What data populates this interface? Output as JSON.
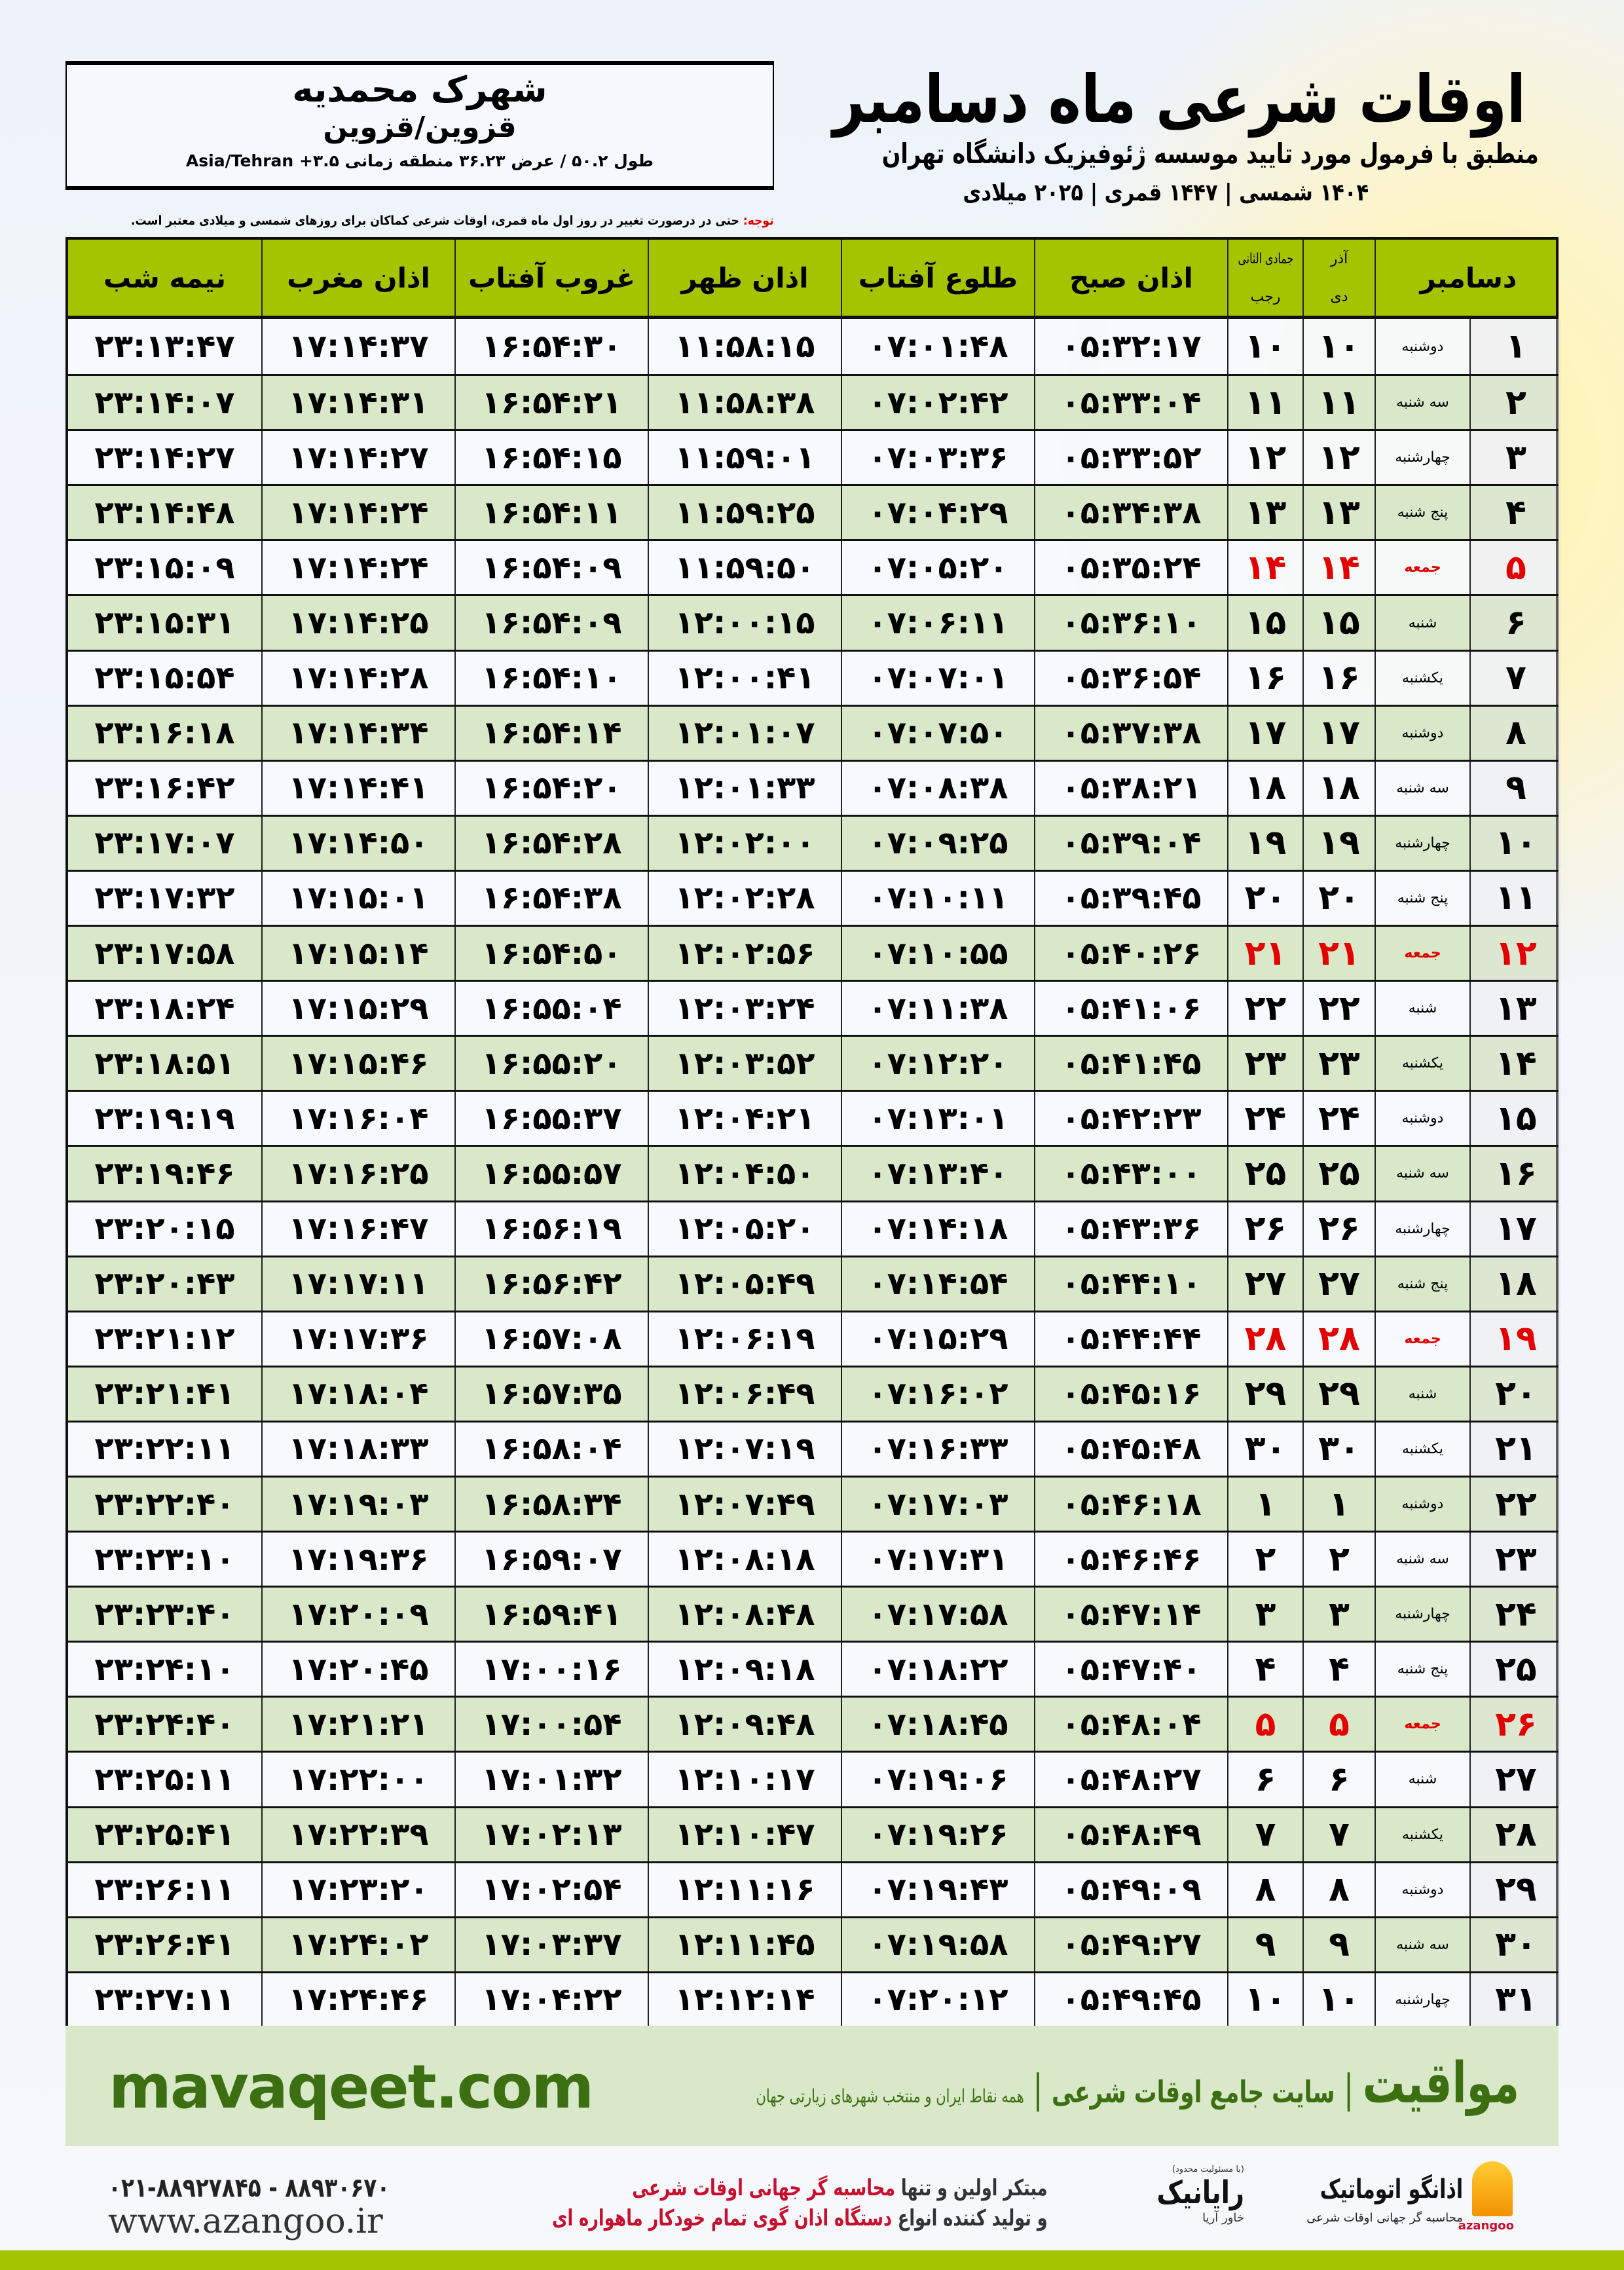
{
  "location": {
    "city": "شهرک محمدیه",
    "province": "قزوین/قزوین",
    "coords": "طول ۵۰.۲ / عرض ۳۶.۲۳ منطقه زمانی Asia/Tehran +۳.۵"
  },
  "title": {
    "main": "اوقات شرعی ماه دسامبر",
    "subtitle": "منطبق با فرمول مورد تایید موسسه ژئوفیزیک دانشگاه تهران",
    "years": "۱۴۰۴ شمسی | ۱۴۴۷ قمری | ۲۰۲۵ میلادی"
  },
  "note": {
    "label": "توجه:",
    "text": " حتی در درصورت تغییر در روز اول ماه قمری، اوقات شرعی کماکان برای روزهای شمسی و میلادی معتبر است."
  },
  "colors": {
    "header": "#a4c400",
    "even_row": "#d9e8c8",
    "friday": "#e30000",
    "brand_green": "#3c6e12"
  },
  "table": {
    "headers": {
      "month": "دسامبر",
      "shamsi_top": "آذر",
      "shamsi_bottom": "دی",
      "qamari_top": "جمادی الثانی",
      "qamari_bottom": "رجب",
      "fajr": "اذان صبح",
      "sunrise": "طلوع آفتاب",
      "dhuhr": "اذان ظهر",
      "sunset": "غروب آفتاب",
      "maghrib": "اذان مغرب",
      "midnight": "نیمه شب"
    },
    "rows": [
      {
        "day": "۱",
        "weekday": "دوشنبه",
        "shamsi": "۱۰",
        "qamari": "۱۰",
        "fajr": "۰۵:۳۲:۱۷",
        "sunrise": "۰۷:۰۱:۴۸",
        "dhuhr": "۱۱:۵۸:۱۵",
        "sunset": "۱۶:۵۴:۳۰",
        "maghrib": "۱۷:۱۴:۳۷",
        "midnight": "۲۳:۱۳:۴۷",
        "holiday": false
      },
      {
        "day": "۲",
        "weekday": "سه شنبه",
        "shamsi": "۱۱",
        "qamari": "۱۱",
        "fajr": "۰۵:۳۳:۰۴",
        "sunrise": "۰۷:۰۲:۴۲",
        "dhuhr": "۱۱:۵۸:۳۸",
        "sunset": "۱۶:۵۴:۲۱",
        "maghrib": "۱۷:۱۴:۳۱",
        "midnight": "۲۳:۱۴:۰۷",
        "holiday": false
      },
      {
        "day": "۳",
        "weekday": "چهارشنبه",
        "shamsi": "۱۲",
        "qamari": "۱۲",
        "fajr": "۰۵:۳۳:۵۲",
        "sunrise": "۰۷:۰۳:۳۶",
        "dhuhr": "۱۱:۵۹:۰۱",
        "sunset": "۱۶:۵۴:۱۵",
        "maghrib": "۱۷:۱۴:۲۷",
        "midnight": "۲۳:۱۴:۲۷",
        "holiday": false
      },
      {
        "day": "۴",
        "weekday": "پنج شنبه",
        "shamsi": "۱۳",
        "qamari": "۱۳",
        "fajr": "۰۵:۳۴:۳۸",
        "sunrise": "۰۷:۰۴:۲۹",
        "dhuhr": "۱۱:۵۹:۲۵",
        "sunset": "۱۶:۵۴:۱۱",
        "maghrib": "۱۷:۱۴:۲۴",
        "midnight": "۲۳:۱۴:۴۸",
        "holiday": false
      },
      {
        "day": "۵",
        "weekday": "جمعه",
        "shamsi": "۱۴",
        "qamari": "۱۴",
        "fajr": "۰۵:۳۵:۲۴",
        "sunrise": "۰۷:۰۵:۲۰",
        "dhuhr": "۱۱:۵۹:۵۰",
        "sunset": "۱۶:۵۴:۰۹",
        "maghrib": "۱۷:۱۴:۲۴",
        "midnight": "۲۳:۱۵:۰۹",
        "holiday": true
      },
      {
        "day": "۶",
        "weekday": "شنبه",
        "shamsi": "۱۵",
        "qamari": "۱۵",
        "fajr": "۰۵:۳۶:۱۰",
        "sunrise": "۰۷:۰۶:۱۱",
        "dhuhr": "۱۲:۰۰:۱۵",
        "sunset": "۱۶:۵۴:۰۹",
        "maghrib": "۱۷:۱۴:۲۵",
        "midnight": "۲۳:۱۵:۳۱",
        "holiday": false
      },
      {
        "day": "۷",
        "weekday": "یکشنبه",
        "shamsi": "۱۶",
        "qamari": "۱۶",
        "fajr": "۰۵:۳۶:۵۴",
        "sunrise": "۰۷:۰۷:۰۱",
        "dhuhr": "۱۲:۰۰:۴۱",
        "sunset": "۱۶:۵۴:۱۰",
        "maghrib": "۱۷:۱۴:۲۸",
        "midnight": "۲۳:۱۵:۵۴",
        "holiday": false
      },
      {
        "day": "۸",
        "weekday": "دوشنبه",
        "shamsi": "۱۷",
        "qamari": "۱۷",
        "fajr": "۰۵:۳۷:۳۸",
        "sunrise": "۰۷:۰۷:۵۰",
        "dhuhr": "۱۲:۰۱:۰۷",
        "sunset": "۱۶:۵۴:۱۴",
        "maghrib": "۱۷:۱۴:۳۴",
        "midnight": "۲۳:۱۶:۱۸",
        "holiday": false
      },
      {
        "day": "۹",
        "weekday": "سه شنبه",
        "shamsi": "۱۸",
        "qamari": "۱۸",
        "fajr": "۰۵:۳۸:۲۱",
        "sunrise": "۰۷:۰۸:۳۸",
        "dhuhr": "۱۲:۰۱:۳۳",
        "sunset": "۱۶:۵۴:۲۰",
        "maghrib": "۱۷:۱۴:۴۱",
        "midnight": "۲۳:۱۶:۴۲",
        "holiday": false
      },
      {
        "day": "۱۰",
        "weekday": "چهارشنبه",
        "shamsi": "۱۹",
        "qamari": "۱۹",
        "fajr": "۰۵:۳۹:۰۴",
        "sunrise": "۰۷:۰۹:۲۵",
        "dhuhr": "۱۲:۰۲:۰۰",
        "sunset": "۱۶:۵۴:۲۸",
        "maghrib": "۱۷:۱۴:۵۰",
        "midnight": "۲۳:۱۷:۰۷",
        "holiday": false
      },
      {
        "day": "۱۱",
        "weekday": "پنج شنبه",
        "shamsi": "۲۰",
        "qamari": "۲۰",
        "fajr": "۰۵:۳۹:۴۵",
        "sunrise": "۰۷:۱۰:۱۱",
        "dhuhr": "۱۲:۰۲:۲۸",
        "sunset": "۱۶:۵۴:۳۸",
        "maghrib": "۱۷:۱۵:۰۱",
        "midnight": "۲۳:۱۷:۳۲",
        "holiday": false
      },
      {
        "day": "۱۲",
        "weekday": "جمعه",
        "shamsi": "۲۱",
        "qamari": "۲۱",
        "fajr": "۰۵:۴۰:۲۶",
        "sunrise": "۰۷:۱۰:۵۵",
        "dhuhr": "۱۲:۰۲:۵۶",
        "sunset": "۱۶:۵۴:۵۰",
        "maghrib": "۱۷:۱۵:۱۴",
        "midnight": "۲۳:۱۷:۵۸",
        "holiday": true
      },
      {
        "day": "۱۳",
        "weekday": "شنبه",
        "shamsi": "۲۲",
        "qamari": "۲۲",
        "fajr": "۰۵:۴۱:۰۶",
        "sunrise": "۰۷:۱۱:۳۸",
        "dhuhr": "۱۲:۰۳:۲۴",
        "sunset": "۱۶:۵۵:۰۴",
        "maghrib": "۱۷:۱۵:۲۹",
        "midnight": "۲۳:۱۸:۲۴",
        "holiday": false
      },
      {
        "day": "۱۴",
        "weekday": "یکشنبه",
        "shamsi": "۲۳",
        "qamari": "۲۳",
        "fajr": "۰۵:۴۱:۴۵",
        "sunrise": "۰۷:۱۲:۲۰",
        "dhuhr": "۱۲:۰۳:۵۲",
        "sunset": "۱۶:۵۵:۲۰",
        "maghrib": "۱۷:۱۵:۴۶",
        "midnight": "۲۳:۱۸:۵۱",
        "holiday": false
      },
      {
        "day": "۱۵",
        "weekday": "دوشنبه",
        "shamsi": "۲۴",
        "qamari": "۲۴",
        "fajr": "۰۵:۴۲:۲۳",
        "sunrise": "۰۷:۱۳:۰۱",
        "dhuhr": "۱۲:۰۴:۲۱",
        "sunset": "۱۶:۵۵:۳۷",
        "maghrib": "۱۷:۱۶:۰۴",
        "midnight": "۲۳:۱۹:۱۹",
        "holiday": false
      },
      {
        "day": "۱۶",
        "weekday": "سه شنبه",
        "shamsi": "۲۵",
        "qamari": "۲۵",
        "fajr": "۰۵:۴۳:۰۰",
        "sunrise": "۰۷:۱۳:۴۰",
        "dhuhr": "۱۲:۰۴:۵۰",
        "sunset": "۱۶:۵۵:۵۷",
        "maghrib": "۱۷:۱۶:۲۵",
        "midnight": "۲۳:۱۹:۴۶",
        "holiday": false
      },
      {
        "day": "۱۷",
        "weekday": "چهارشنبه",
        "shamsi": "۲۶",
        "qamari": "۲۶",
        "fajr": "۰۵:۴۳:۳۶",
        "sunrise": "۰۷:۱۴:۱۸",
        "dhuhr": "۱۲:۰۵:۲۰",
        "sunset": "۱۶:۵۶:۱۹",
        "maghrib": "۱۷:۱۶:۴۷",
        "midnight": "۲۳:۲۰:۱۵",
        "holiday": false
      },
      {
        "day": "۱۸",
        "weekday": "پنج شنبه",
        "shamsi": "۲۷",
        "qamari": "۲۷",
        "fajr": "۰۵:۴۴:۱۰",
        "sunrise": "۰۷:۱۴:۵۴",
        "dhuhr": "۱۲:۰۵:۴۹",
        "sunset": "۱۶:۵۶:۴۲",
        "maghrib": "۱۷:۱۷:۱۱",
        "midnight": "۲۳:۲۰:۴۳",
        "holiday": false
      },
      {
        "day": "۱۹",
        "weekday": "جمعه",
        "shamsi": "۲۸",
        "qamari": "۲۸",
        "fajr": "۰۵:۴۴:۴۴",
        "sunrise": "۰۷:۱۵:۲۹",
        "dhuhr": "۱۲:۰۶:۱۹",
        "sunset": "۱۶:۵۷:۰۸",
        "maghrib": "۱۷:۱۷:۳۶",
        "midnight": "۲۳:۲۱:۱۲",
        "holiday": true
      },
      {
        "day": "۲۰",
        "weekday": "شنبه",
        "shamsi": "۲۹",
        "qamari": "۲۹",
        "fajr": "۰۵:۴۵:۱۶",
        "sunrise": "۰۷:۱۶:۰۲",
        "dhuhr": "۱۲:۰۶:۴۹",
        "sunset": "۱۶:۵۷:۳۵",
        "maghrib": "۱۷:۱۸:۰۴",
        "midnight": "۲۳:۲۱:۴۱",
        "holiday": false
      },
      {
        "day": "۲۱",
        "weekday": "یکشنبه",
        "shamsi": "۳۰",
        "qamari": "۳۰",
        "fajr": "۰۵:۴۵:۴۸",
        "sunrise": "۰۷:۱۶:۳۳",
        "dhuhr": "۱۲:۰۷:۱۹",
        "sunset": "۱۶:۵۸:۰۴",
        "maghrib": "۱۷:۱۸:۳۳",
        "midnight": "۲۳:۲۲:۱۱",
        "holiday": false
      },
      {
        "day": "۲۲",
        "weekday": "دوشنبه",
        "shamsi": "۱",
        "qamari": "۱",
        "fajr": "۰۵:۴۶:۱۸",
        "sunrise": "۰۷:۱۷:۰۳",
        "dhuhr": "۱۲:۰۷:۴۹",
        "sunset": "۱۶:۵۸:۳۴",
        "maghrib": "۱۷:۱۹:۰۳",
        "midnight": "۲۳:۲۲:۴۰",
        "holiday": false
      },
      {
        "day": "۲۳",
        "weekday": "سه شنبه",
        "shamsi": "۲",
        "qamari": "۲",
        "fajr": "۰۵:۴۶:۴۶",
        "sunrise": "۰۷:۱۷:۳۱",
        "dhuhr": "۱۲:۰۸:۱۸",
        "sunset": "۱۶:۵۹:۰۷",
        "maghrib": "۱۷:۱۹:۳۶",
        "midnight": "۲۳:۲۳:۱۰",
        "holiday": false
      },
      {
        "day": "۲۴",
        "weekday": "چهارشنبه",
        "shamsi": "۳",
        "qamari": "۳",
        "fajr": "۰۵:۴۷:۱۴",
        "sunrise": "۰۷:۱۷:۵۸",
        "dhuhr": "۱۲:۰۸:۴۸",
        "sunset": "۱۶:۵۹:۴۱",
        "maghrib": "۱۷:۲۰:۰۹",
        "midnight": "۲۳:۲۳:۴۰",
        "holiday": false
      },
      {
        "day": "۲۵",
        "weekday": "پنج شنبه",
        "shamsi": "۴",
        "qamari": "۴",
        "fajr": "۰۵:۴۷:۴۰",
        "sunrise": "۰۷:۱۸:۲۲",
        "dhuhr": "۱۲:۰۹:۱۸",
        "sunset": "۱۷:۰۰:۱۶",
        "maghrib": "۱۷:۲۰:۴۵",
        "midnight": "۲۳:۲۴:۱۰",
        "holiday": false
      },
      {
        "day": "۲۶",
        "weekday": "جمعه",
        "shamsi": "۵",
        "qamari": "۵",
        "fajr": "۰۵:۴۸:۰۴",
        "sunrise": "۰۷:۱۸:۴۵",
        "dhuhr": "۱۲:۰۹:۴۸",
        "sunset": "۱۷:۰۰:۵۴",
        "maghrib": "۱۷:۲۱:۲۱",
        "midnight": "۲۳:۲۴:۴۰",
        "holiday": true
      },
      {
        "day": "۲۷",
        "weekday": "شنبه",
        "shamsi": "۶",
        "qamari": "۶",
        "fajr": "۰۵:۴۸:۲۷",
        "sunrise": "۰۷:۱۹:۰۶",
        "dhuhr": "۱۲:۱۰:۱۷",
        "sunset": "۱۷:۰۱:۳۲",
        "maghrib": "۱۷:۲۲:۰۰",
        "midnight": "۲۳:۲۵:۱۱",
        "holiday": false
      },
      {
        "day": "۲۸",
        "weekday": "یکشنبه",
        "shamsi": "۷",
        "qamari": "۷",
        "fajr": "۰۵:۴۸:۴۹",
        "sunrise": "۰۷:۱۹:۲۶",
        "dhuhr": "۱۲:۱۰:۴۷",
        "sunset": "۱۷:۰۲:۱۳",
        "maghrib": "۱۷:۲۲:۳۹",
        "midnight": "۲۳:۲۵:۴۱",
        "holiday": false
      },
      {
        "day": "۲۹",
        "weekday": "دوشنبه",
        "shamsi": "۸",
        "qamari": "۸",
        "fajr": "۰۵:۴۹:۰۹",
        "sunrise": "۰۷:۱۹:۴۳",
        "dhuhr": "۱۲:۱۱:۱۶",
        "sunset": "۱۷:۰۲:۵۴",
        "maghrib": "۱۷:۲۳:۲۰",
        "midnight": "۲۳:۲۶:۱۱",
        "holiday": false
      },
      {
        "day": "۳۰",
        "weekday": "سه شنبه",
        "shamsi": "۹",
        "qamari": "۹",
        "fajr": "۰۵:۴۹:۲۷",
        "sunrise": "۰۷:۱۹:۵۸",
        "dhuhr": "۱۲:۱۱:۴۵",
        "sunset": "۱۷:۰۳:۳۷",
        "maghrib": "۱۷:۲۴:۰۲",
        "midnight": "۲۳:۲۶:۴۱",
        "holiday": false
      },
      {
        "day": "۳۱",
        "weekday": "چهارشنبه",
        "shamsi": "۱۰",
        "qamari": "۱۰",
        "fajr": "۰۵:۴۹:۴۵",
        "sunrise": "۰۷:۲۰:۱۲",
        "dhuhr": "۱۲:۱۲:۱۴",
        "sunset": "۱۷:۰۴:۲۲",
        "maghrib": "۱۷:۲۴:۴۶",
        "midnight": "۲۳:۲۷:۱۱",
        "holiday": false
      }
    ]
  },
  "banner": {
    "brand": "مواقیت",
    "tagline": "سایت جامع اوقات شرعی",
    "description": "همه نقاط ایران و منتخب شهرهای زیارتی جهان",
    "separator": "|",
    "website": "mavaqeet.com"
  },
  "footer": {
    "phone": "۰۲۱-۸۸۹۲۷۸۴۵ - ۸۸۹۳۰۶۷۰",
    "website": "www.azangoo.ir",
    "line1_plain": "مبتکر اولین و تنها ",
    "line1_red": "محاسبه گر جهانی اوقات شرعی",
    "line2_plain": "و تولید کننده انواع ",
    "line2_red": "دستگاه اذان گوی تمام خودکار ماهواره ای",
    "raianik_small": "(با مسئولیت محدود)",
    "raianik_name": "رایانیک",
    "raianik_sub": "خاور آریا",
    "azangoo_name": "اذانگو اتوماتیک",
    "azangoo_sub": "محاسبه گر جهانی اوقات شرعی",
    "azangoo_latin": "azangoo"
  }
}
